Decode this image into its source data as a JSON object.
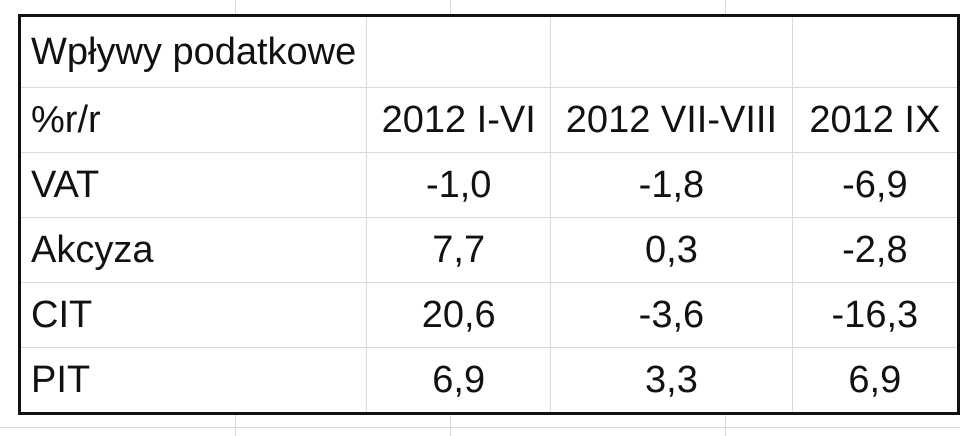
{
  "table": {
    "title": "Wpływy podatkowe",
    "header": [
      "%r/r",
      "2012 I-VI",
      "2012 VII-VIII",
      "2012 IX"
    ],
    "rows": [
      [
        "VAT",
        "-1,0",
        "-1,8",
        "-6,9"
      ],
      [
        "Akcyza",
        "7,7",
        "0,3",
        "-2,8"
      ],
      [
        "CIT",
        "20,6",
        "-3,6",
        "-16,3"
      ],
      [
        "PIT",
        "6,9",
        "3,3",
        "6,9"
      ]
    ]
  }
}
